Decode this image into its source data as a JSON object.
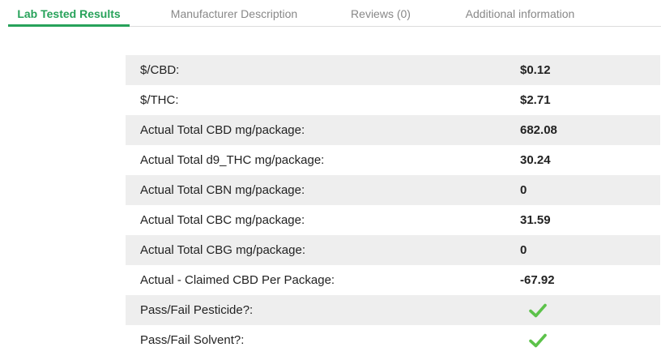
{
  "tabs": [
    {
      "label": "Lab Tested Results",
      "active": true
    },
    {
      "label": "Manufacturer Description",
      "active": false
    },
    {
      "label": "Reviews (0)",
      "active": false
    },
    {
      "label": "Additional information",
      "active": false
    }
  ],
  "accent_color": "#27a25a",
  "check_color": "#5cc24a",
  "rows": [
    {
      "label": "$/CBD:",
      "value": "$0.12"
    },
    {
      "label": "$/THC:",
      "value": "$2.71"
    },
    {
      "label": "Actual Total CBD mg/package:",
      "value": "682.08"
    },
    {
      "label": "Actual Total d9_THC mg/package:",
      "value": "30.24"
    },
    {
      "label": "Actual Total CBN mg/package:",
      "value": "0"
    },
    {
      "label": "Actual Total CBC mg/package:",
      "value": "31.59"
    },
    {
      "label": "Actual Total CBG mg/package:",
      "value": "0"
    },
    {
      "label": "Actual - Claimed CBD Per Package:",
      "value": "-67.92"
    },
    {
      "label": "Pass/Fail Pesticide?:",
      "icon": "checkmark-icon"
    },
    {
      "label": "Pass/Fail Solvent?:",
      "icon": "checkmark-icon"
    }
  ]
}
